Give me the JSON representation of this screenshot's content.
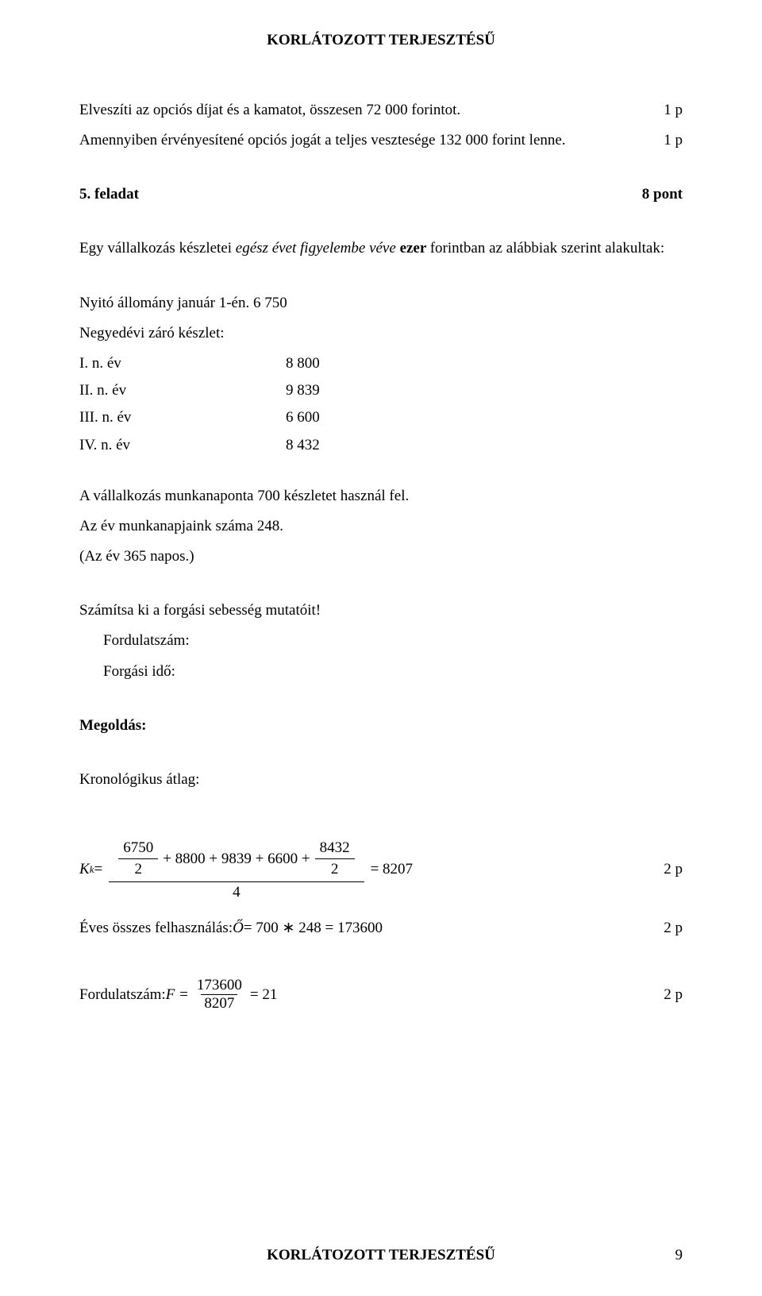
{
  "header": "KORLÁTOZOTT TERJESZTÉSŰ",
  "line1": {
    "text": "Elveszíti az opciós díjat és a kamatot, összesen 72 000  forintot.",
    "pts": "1 p"
  },
  "line2": {
    "text": "Amennyiben érvényesítené opciós jogát a teljes vesztesége 132 000  forint lenne.",
    "pts": "1 p"
  },
  "task": {
    "label": "5. feladat",
    "pts": "8 pont"
  },
  "intro1a": "Egy vállalkozás készletei ",
  "intro1b": "egész évet figyelembe véve ",
  "intro1c": "ezer ",
  "intro1d": "forintban az alábbiak szerint alakultak:",
  "opening": "Nyitó állomány január 1-én.  6 750",
  "quarterly": "Negyedévi záró készlet:",
  "rows": [
    {
      "label": "I.   n. év",
      "value": "8 800"
    },
    {
      "label": "II. n. év",
      "value": "9 839"
    },
    {
      "label": "III. n. év",
      "value": "6 600"
    },
    {
      "label": "IV. n. év",
      "value": "8 432"
    }
  ],
  "usage1": "A vállalkozás munkanaponta 700  készletet használ fel.",
  "usage2": "Az év munkanapjaink száma 248.",
  "usage3": "(Az év 365 napos.)",
  "compute": "Számítsa ki a forgási sebesség mutatóit!",
  "fordlabel": "Fordulatszám:",
  "forgido": "Forgási idő:",
  "megoldas": "Megoldás:",
  "krono": "Kronológikus átlag:",
  "formula1": {
    "lhs": "K",
    "sub": "k",
    "eq": " = ",
    "num_frac1_num": "6750",
    "num_frac1_den": "2",
    "num_mid": " + 8800 + 9839 + 6600 + ",
    "num_frac2_num": "8432",
    "num_frac2_den": "2",
    "den": "4",
    "result": " = 8207",
    "pts": "2  p"
  },
  "formula2": {
    "prefix": "Éves összes felhasználás: ",
    "var": "Ő",
    "body": " = 700 ∗ 248 = 173600",
    "pts": "2  p"
  },
  "formula3": {
    "prefix": "Fordulatszám: ",
    "var": "F = ",
    "num": "173600",
    "den": "8207",
    "result": " = 21",
    "pts": "2  p"
  },
  "footer": {
    "center": "KORLÁTOZOTT TERJESZTÉSŰ",
    "page": "9"
  }
}
